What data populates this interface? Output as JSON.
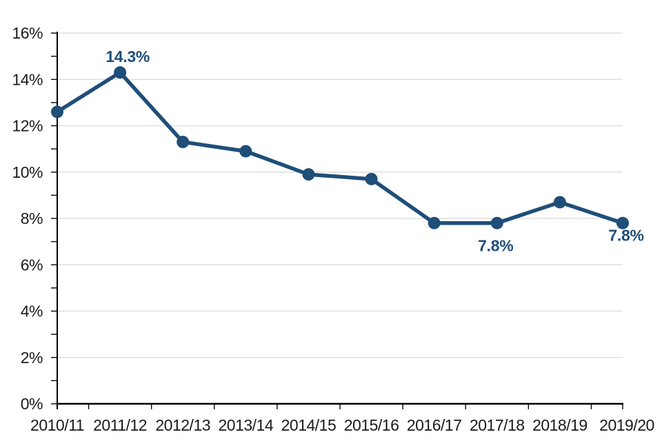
{
  "chart_data": {
    "type": "line",
    "categories": [
      "2010/11",
      "2011/12",
      "2012/13",
      "2013/14",
      "2014/15",
      "2015/16",
      "2016/17",
      "2017/18",
      "2018/19",
      "2019/20"
    ],
    "values": [
      12.6,
      14.3,
      11.3,
      10.9,
      9.9,
      9.7,
      7.8,
      7.8,
      8.7,
      7.8
    ],
    "unit": "%",
    "ylim": [
      0,
      16
    ],
    "y_tick_step": 2,
    "y_minor_tick_step": 1,
    "y_tick_labels": [
      "0%",
      "2%",
      "4%",
      "6%",
      "8%",
      "10%",
      "12%",
      "14%",
      "16%"
    ],
    "grid": "horizontal",
    "legend": "none",
    "annotations": [
      {
        "category": "2011/12",
        "index": 1,
        "label": "14.3%",
        "position": "above"
      },
      {
        "category": "2017/18",
        "index": 7,
        "label": "7.8%",
        "position": "below"
      },
      {
        "category": "2019/20",
        "index": 9,
        "label": "7.8%",
        "position": "below-right"
      }
    ],
    "colors": {
      "line": "#1F4E79",
      "marker": "#1F4E79",
      "data_label": "#1F4E79",
      "axis": "#000000",
      "gridline": "#D9D9D9",
      "axis_text": "#1a1a1a"
    }
  }
}
